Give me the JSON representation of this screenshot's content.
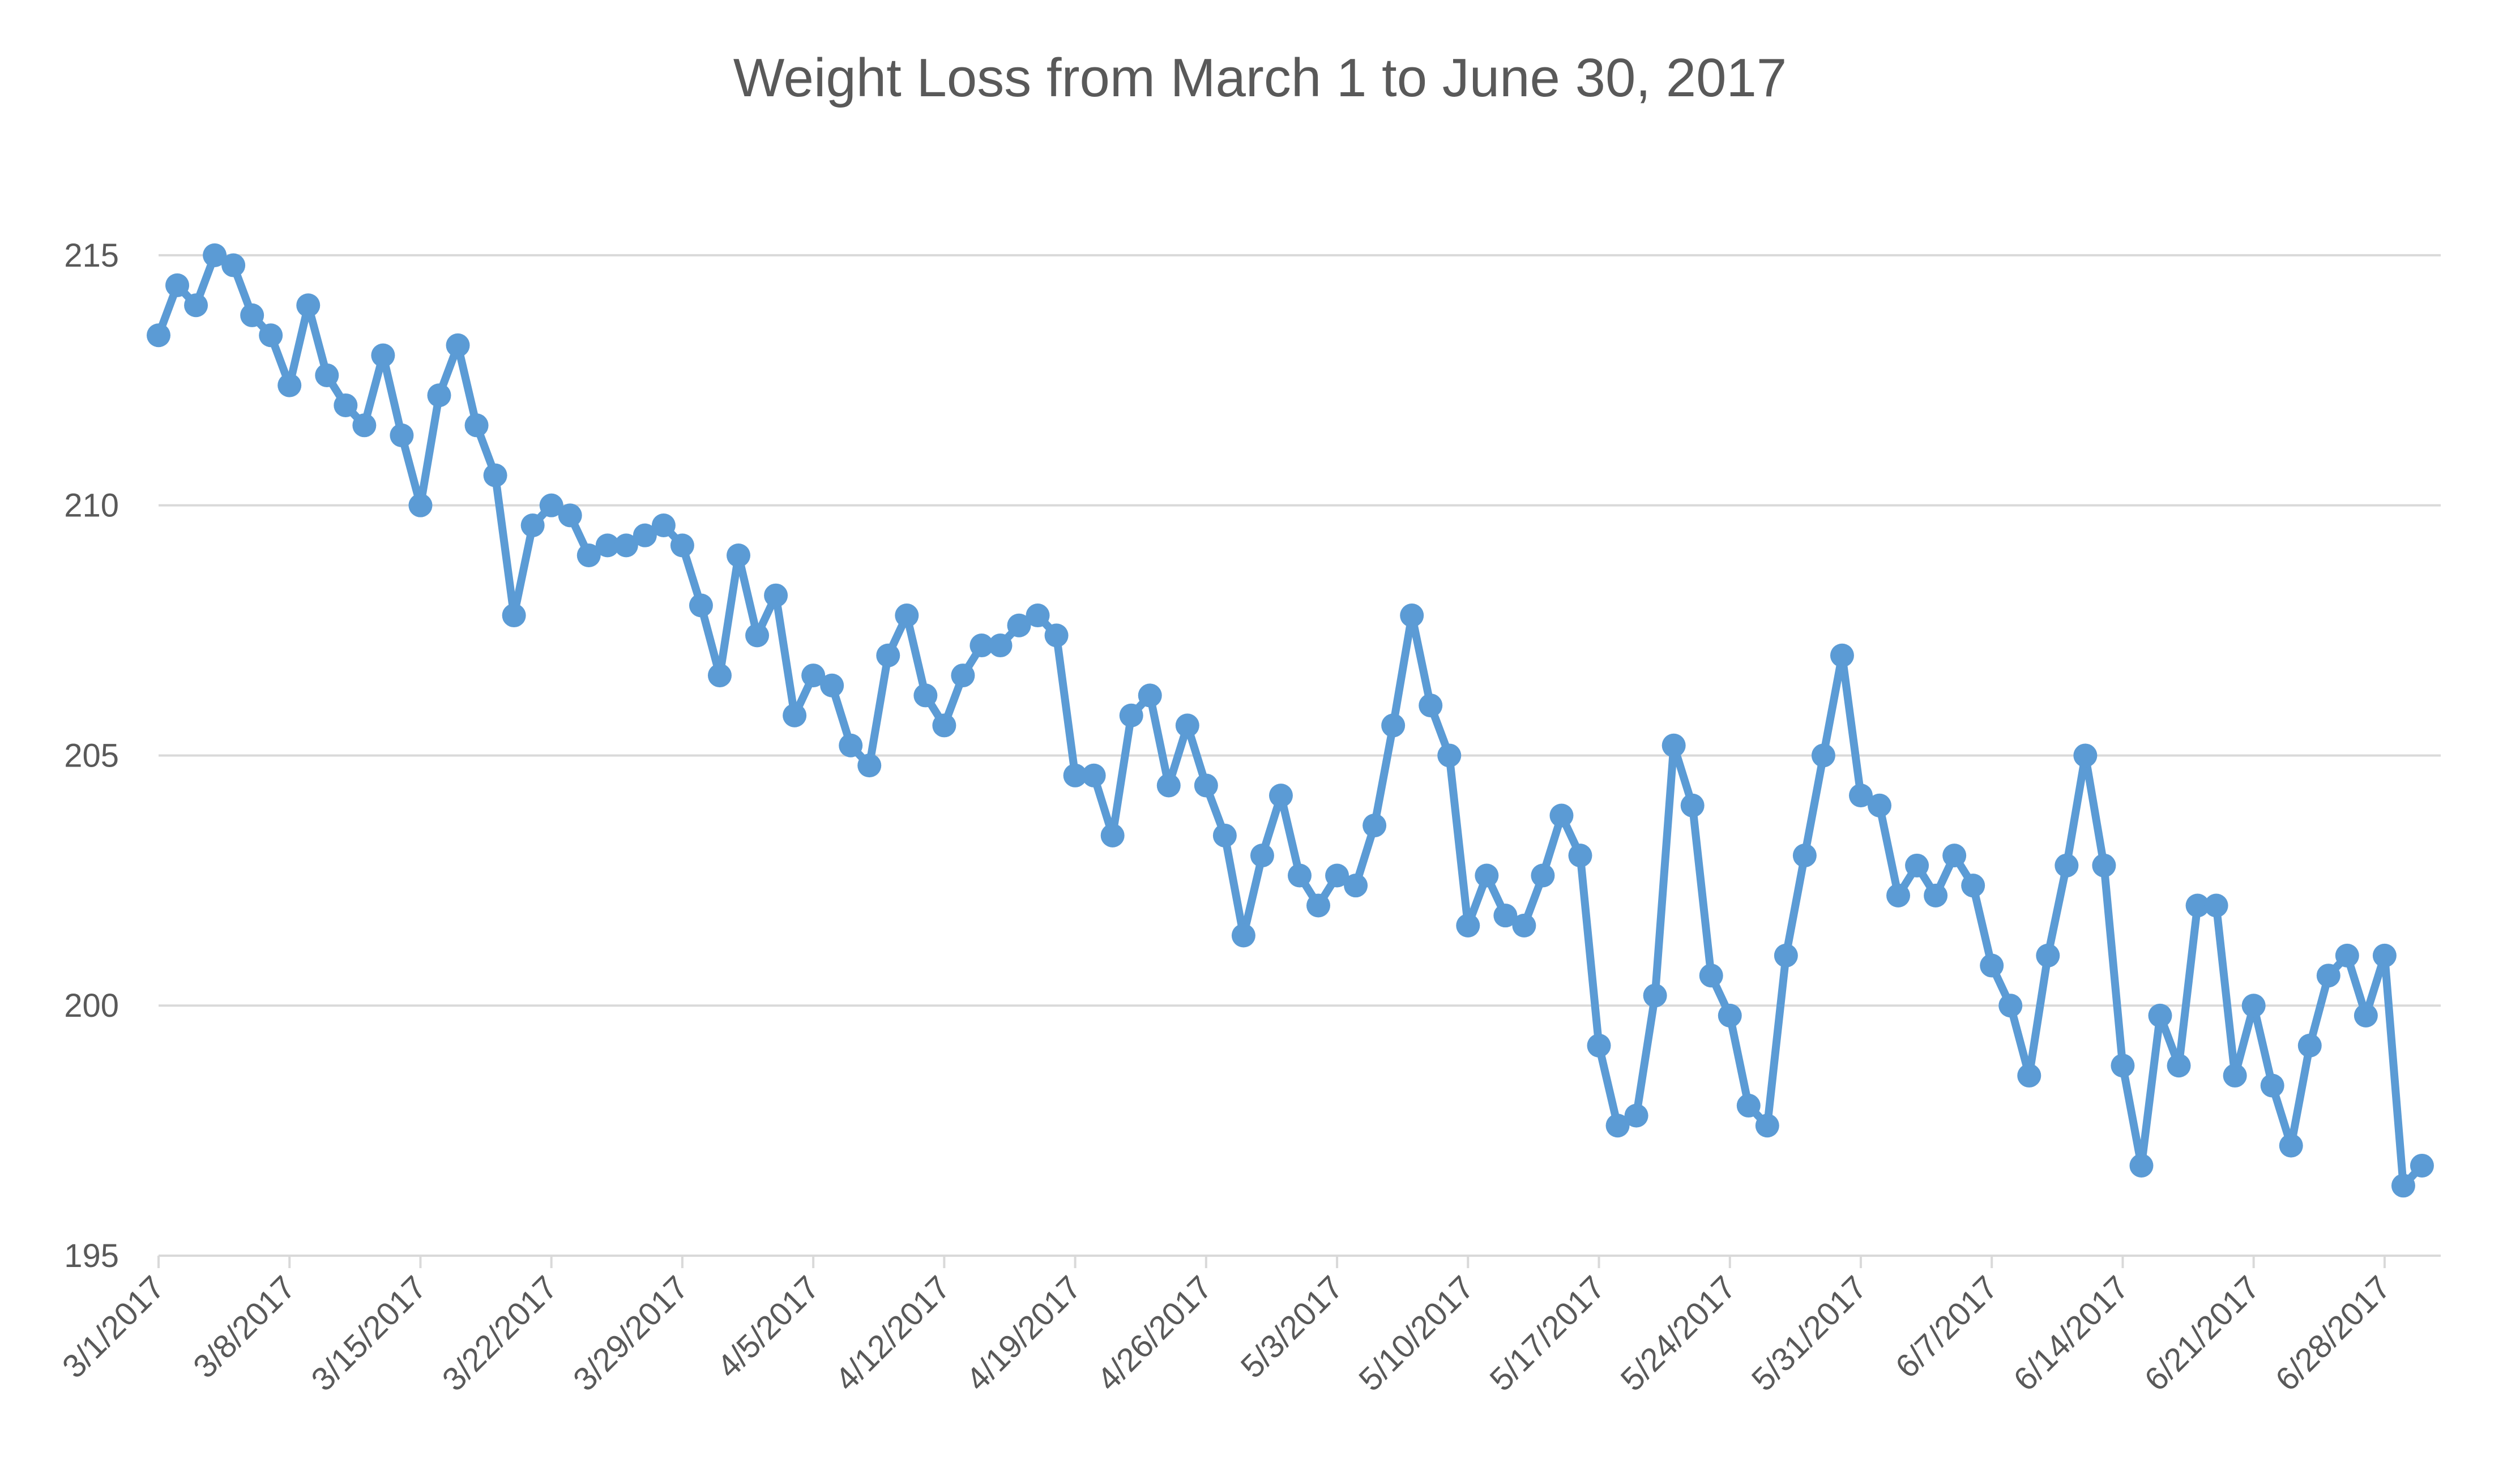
{
  "chart_data": {
    "type": "line",
    "title": "Weight Loss from March 1 to June 30, 2017",
    "xlabel": "",
    "ylabel": "",
    "ylim": [
      195,
      217.5
    ],
    "yticks": [
      195,
      200,
      205,
      210,
      215
    ],
    "xlim": [
      "3/1/2017",
      "7/1/2017"
    ],
    "xticks": [
      "3/1/2017",
      "3/8/2017",
      "3/15/2017",
      "3/22/2017",
      "3/29/2017",
      "4/5/2017",
      "4/12/2017",
      "4/19/2017",
      "4/26/2017",
      "5/3/2017",
      "5/10/2017",
      "5/17/2017",
      "5/24/2017",
      "5/31/2017",
      "6/7/2017",
      "6/14/2017",
      "6/21/2017",
      "6/28/2017"
    ],
    "grid": true,
    "legend": "none",
    "color": "#5b9bd5",
    "series": [
      {
        "x": [
          "3/1/2017",
          "3/2/2017",
          "3/3/2017",
          "3/4/2017",
          "3/5/2017",
          "3/6/2017",
          "3/7/2017",
          "3/8/2017",
          "3/9/2017",
          "3/10/2017",
          "3/11/2017",
          "3/12/2017",
          "3/13/2017",
          "3/14/2017",
          "3/15/2017",
          "3/16/2017",
          "3/17/2017",
          "3/18/2017",
          "3/19/2017",
          "3/20/2017",
          "3/21/2017",
          "3/22/2017",
          "3/23/2017",
          "3/24/2017",
          "3/25/2017",
          "3/26/2017",
          "3/27/2017",
          "3/28/2017",
          "3/29/2017",
          "3/30/2017",
          "3/31/2017",
          "4/1/2017",
          "4/2/2017",
          "4/3/2017",
          "4/4/2017",
          "4/5/2017",
          "4/6/2017",
          "4/7/2017",
          "4/8/2017",
          "4/9/2017",
          "4/10/2017",
          "4/11/2017",
          "4/12/2017",
          "4/13/2017",
          "4/14/2017",
          "4/15/2017",
          "4/16/2017",
          "4/17/2017",
          "4/18/2017",
          "4/19/2017",
          "4/20/2017",
          "4/21/2017",
          "4/22/2017",
          "4/23/2017",
          "4/24/2017",
          "4/25/2017",
          "4/26/2017",
          "4/27/2017",
          "4/28/2017",
          "4/29/2017",
          "4/30/2017",
          "5/1/2017",
          "5/2/2017",
          "5/3/2017",
          "5/4/2017",
          "5/5/2017",
          "5/6/2017",
          "5/7/2017",
          "5/8/2017",
          "5/9/2017",
          "5/10/2017",
          "5/11/2017",
          "5/12/2017",
          "5/13/2017",
          "5/14/2017",
          "5/15/2017",
          "5/16/2017",
          "5/17/2017",
          "5/18/2017",
          "5/19/2017",
          "5/20/2017",
          "5/21/2017",
          "5/22/2017",
          "5/23/2017",
          "5/24/2017",
          "5/25/2017",
          "5/26/2017",
          "5/27/2017",
          "5/28/2017",
          "5/29/2017",
          "5/30/2017",
          "5/31/2017",
          "6/1/2017",
          "6/2/2017",
          "6/3/2017",
          "6/4/2017",
          "6/5/2017",
          "6/6/2017",
          "6/7/2017",
          "6/8/2017",
          "6/9/2017",
          "6/10/2017",
          "6/11/2017",
          "6/12/2017",
          "6/13/2017",
          "6/14/2017",
          "6/15/2017",
          "6/16/2017",
          "6/17/2017",
          "6/18/2017",
          "6/19/2017",
          "6/20/2017",
          "6/21/2017",
          "6/22/2017",
          "6/23/2017",
          "6/24/2017",
          "6/25/2017",
          "6/26/2017",
          "6/27/2017",
          "6/28/2017",
          "6/29/2017",
          "6/30/2017"
        ],
        "values": [
          213.4,
          214.4,
          214.0,
          215.0,
          214.8,
          213.8,
          213.4,
          212.4,
          214.0,
          212.6,
          212.0,
          211.6,
          213.0,
          211.4,
          210.0,
          212.2,
          213.2,
          211.6,
          210.6,
          207.8,
          209.6,
          210.0,
          209.8,
          209.0,
          209.2,
          209.2,
          209.4,
          209.6,
          209.2,
          208.0,
          206.6,
          209.0,
          207.4,
          208.2,
          205.8,
          206.6,
          206.4,
          205.2,
          204.8,
          207.0,
          207.8,
          206.2,
          205.6,
          206.6,
          207.2,
          207.2,
          207.6,
          207.8,
          207.4,
          204.6,
          204.6,
          203.4,
          205.8,
          206.2,
          204.4,
          205.6,
          204.4,
          203.4,
          201.4,
          203.0,
          204.2,
          202.6,
          202.0,
          202.6,
          202.4,
          203.6,
          205.6,
          207.8,
          206.0,
          205.0,
          201.6,
          202.6,
          201.8,
          201.6,
          202.6,
          203.8,
          203.0,
          199.2,
          197.6,
          197.8,
          200.2,
          205.2,
          204.0,
          200.6,
          199.8,
          198.0,
          197.6,
          201.0,
          203.0,
          205.0,
          207.0,
          204.2,
          204.0,
          202.2,
          202.8,
          202.2,
          203.0,
          202.4,
          200.8,
          200.0,
          198.6,
          201.0,
          202.8,
          205.0,
          202.8,
          198.8,
          196.8,
          199.8,
          198.8,
          202.0,
          202.0,
          198.6,
          200.0,
          198.4,
          197.2,
          199.2,
          200.6,
          201.0,
          199.8,
          201.0,
          196.4,
          196.8
        ]
      }
    ]
  }
}
